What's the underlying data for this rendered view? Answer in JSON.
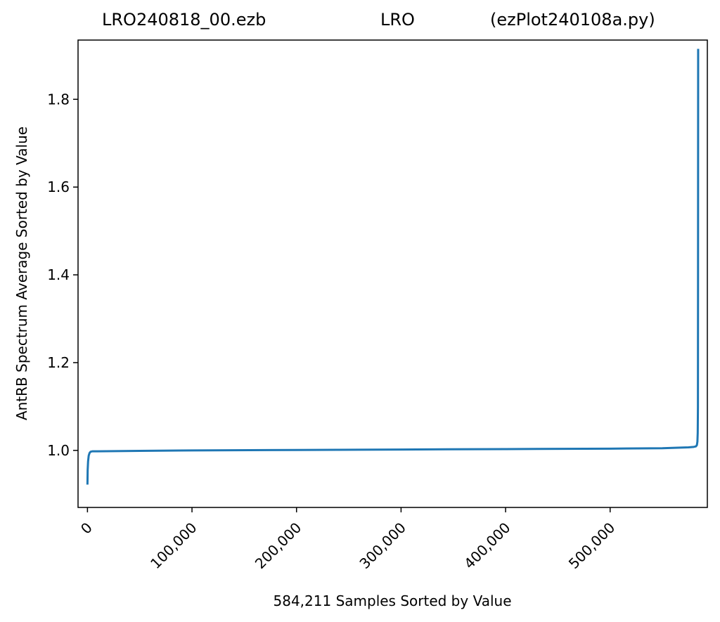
{
  "chart_data": {
    "type": "line",
    "title_left": "LRO240818_00.ezb",
    "title_center": "LRO",
    "title_right": "(ezPlot240108a.py)",
    "xlabel": "584,211 Samples Sorted by Value",
    "ylabel": "AntRB Spectrum Average Sorted by Value",
    "xlim": [
      -9000,
      593000
    ],
    "ylim": [
      0.87,
      1.935
    ],
    "x_ticks": [
      0,
      100000,
      200000,
      300000,
      400000,
      500000
    ],
    "x_tick_labels": [
      "0",
      "100,000",
      "200,000",
      "300,000",
      "400,000",
      "500,000"
    ],
    "y_ticks": [
      1.0,
      1.2,
      1.4,
      1.6,
      1.8
    ],
    "y_tick_labels": [
      "1.0",
      "1.2",
      "1.4",
      "1.6",
      "1.8"
    ],
    "grid": false,
    "line_color": "#1f77b4",
    "series": [
      {
        "x": [
          0,
          200,
          600,
          1200,
          2000,
          3000,
          5000,
          10000,
          50000,
          100000,
          200000,
          300000,
          400000,
          500000,
          550000,
          575000,
          580000,
          582000,
          583000,
          583500,
          583800,
          584000,
          584100,
          584211
        ],
        "y": [
          0.922,
          0.955,
          0.975,
          0.988,
          0.994,
          0.997,
          0.998,
          0.998,
          0.999,
          1.0,
          1.001,
          1.002,
          1.003,
          1.004,
          1.005,
          1.007,
          1.008,
          1.009,
          1.012,
          1.02,
          1.04,
          1.1,
          1.4,
          1.915
        ]
      }
    ]
  }
}
